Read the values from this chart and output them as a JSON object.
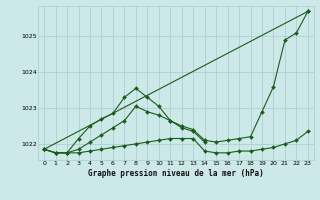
{
  "title": "Graphe pression niveau de la mer (hPa)",
  "bg_color": "#cce8e8",
  "grid_color": "#aacccc",
  "line_color": "#1a5c1a",
  "xlim": [
    -0.5,
    23.5
  ],
  "ylim": [
    1021.55,
    1025.85
  ],
  "yticks": [
    1022,
    1023,
    1024,
    1025
  ],
  "xticks": [
    0,
    1,
    2,
    3,
    4,
    5,
    6,
    7,
    8,
    9,
    10,
    11,
    12,
    13,
    14,
    15,
    16,
    17,
    18,
    19,
    20,
    21,
    22,
    23
  ],
  "series": [
    {
      "x": [
        0,
        1,
        2,
        3,
        4,
        5,
        6,
        7,
        8,
        9,
        10,
        11,
        12,
        13,
        14,
        15,
        16,
        17,
        18,
        19,
        20,
        21,
        22,
        23
      ],
      "y": [
        1021.85,
        1021.75,
        1021.75,
        1021.75,
        1021.8,
        1021.85,
        1021.9,
        1021.95,
        1022.0,
        1022.05,
        1022.1,
        1022.15,
        1022.15,
        1022.15,
        1021.8,
        1021.75,
        1021.75,
        1021.8,
        1021.8,
        1021.85,
        1021.9,
        1022.0,
        1022.1,
        1022.35
      ]
    },
    {
      "x": [
        0,
        1,
        2,
        3,
        4,
        5,
        6,
        7,
        8,
        9,
        10,
        11,
        12,
        13,
        14
      ],
      "y": [
        1021.85,
        1021.75,
        1021.75,
        1022.15,
        1022.5,
        1022.7,
        1022.85,
        1023.3,
        1023.55,
        1023.3,
        1023.05,
        1022.65,
        1022.45,
        1022.35,
        1022.05
      ]
    },
    {
      "x": [
        0,
        1,
        2,
        3,
        4,
        5,
        6,
        7,
        8,
        9,
        10,
        11,
        12,
        13,
        14,
        15,
        16,
        17,
        18,
        19,
        20,
        21,
        22,
        23
      ],
      "y": [
        1021.85,
        1021.75,
        1021.75,
        1021.85,
        1022.05,
        1022.25,
        1022.45,
        1022.65,
        1023.05,
        1022.9,
        1022.8,
        1022.65,
        1022.5,
        1022.4,
        1022.1,
        1022.05,
        1022.1,
        1022.15,
        1022.2,
        1022.9,
        1023.6,
        1024.9,
        1025.1,
        1025.7
      ]
    },
    {
      "x": [
        0,
        23
      ],
      "y": [
        1021.85,
        1025.7
      ]
    }
  ]
}
